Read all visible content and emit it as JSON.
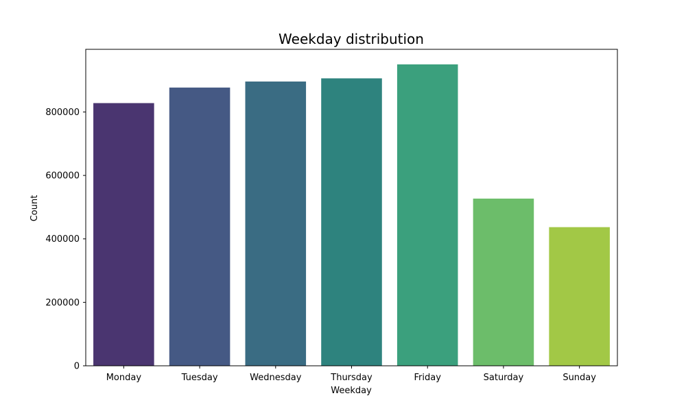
{
  "chart_data": {
    "type": "bar",
    "title": "Weekday distribution",
    "xlabel": "Weekday",
    "ylabel": "Count",
    "categories": [
      "Monday",
      "Tuesday",
      "Wednesday",
      "Thursday",
      "Friday",
      "Saturday",
      "Sunday"
    ],
    "values": [
      828000,
      877000,
      896000,
      906000,
      950000,
      527000,
      437000
    ],
    "colors": [
      "#4a3570",
      "#455984",
      "#3a6c83",
      "#2e837e",
      "#3ba07d",
      "#6cbd6a",
      "#a2c846"
    ],
    "ylim": [
      0,
      997500
    ],
    "yticks": [
      0,
      200000,
      400000,
      600000,
      800000
    ],
    "ytick_labels": [
      "0",
      "200000",
      "400000",
      "600000",
      "800000"
    ],
    "grid": false,
    "legend": "none"
  }
}
